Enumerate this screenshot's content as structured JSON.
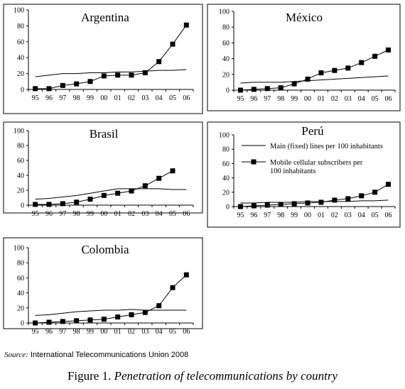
{
  "source": {
    "label": "Source:",
    "text": "International Telecommunications Union 2008"
  },
  "figure_caption": {
    "number": "Figure 1.",
    "text": "Penetration of telecommunications by country"
  },
  "chart_data": [
    {
      "type": "line",
      "title": "Argentina",
      "x": [
        "95",
        "96",
        "97",
        "98",
        "99",
        "00",
        "01",
        "02",
        "03",
        "04",
        "05",
        "06"
      ],
      "ylim": [
        0,
        100
      ],
      "yticks": [
        0,
        20,
        40,
        60,
        80,
        100
      ],
      "series": [
        {
          "values": [
            16,
            18,
            20,
            20,
            21,
            21,
            22,
            22,
            23,
            24,
            24,
            25
          ]
        },
        {
          "values": [
            1,
            1,
            5,
            7,
            10,
            17,
            18,
            18,
            21,
            35,
            57,
            81
          ]
        }
      ]
    },
    {
      "type": "line",
      "title": "México",
      "x": [
        "95",
        "96",
        "97",
        "98",
        "99",
        "00",
        "01",
        "02",
        "03",
        "04",
        "05",
        "06"
      ],
      "ylim": [
        0,
        100
      ],
      "yticks": [
        0,
        20,
        40,
        60,
        80,
        100
      ],
      "series": [
        {
          "values": [
            9,
            10,
            10,
            10,
            11,
            12,
            13,
            14,
            15,
            16,
            17,
            18
          ]
        },
        {
          "values": [
            0,
            1,
            2,
            3,
            8,
            14,
            22,
            25,
            28,
            35,
            43,
            51
          ]
        }
      ]
    },
    {
      "type": "line",
      "title": "Brasil",
      "x": [
        "95",
        "96",
        "97",
        "98",
        "99",
        "00",
        "01",
        "02",
        "03",
        "04",
        "05",
        "06"
      ],
      "ylim": [
        0,
        100
      ],
      "yticks": [
        0,
        20,
        40,
        60,
        80,
        100
      ],
      "series": [
        {
          "values": [
            8,
            9,
            11,
            13,
            16,
            19,
            22,
            22,
            22,
            22,
            21,
            21
          ]
        },
        {
          "values": [
            1,
            1,
            2,
            4,
            8,
            13,
            16,
            19,
            26,
            36,
            46,
            null
          ]
        }
      ]
    },
    {
      "type": "line",
      "title": "Perú",
      "x": [
        "95",
        "96",
        "97",
        "98",
        "99",
        "00",
        "01",
        "02",
        "03",
        "04",
        "05",
        "06"
      ],
      "ylim": [
        0,
        100
      ],
      "yticks": [
        0,
        20,
        40,
        60,
        80,
        100
      ],
      "legend": "top-right",
      "series": [
        {
          "name": "Main (fixed) lines per 100 inhabitants",
          "values": [
            5,
            5,
            6,
            6,
            6,
            7,
            7,
            7,
            7,
            8,
            8,
            9
          ]
        },
        {
          "name": "Mobile cellular subscribers per 100 inhabitants",
          "values": [
            0,
            1,
            2,
            3,
            4,
            5,
            6,
            9,
            11,
            15,
            20,
            31
          ]
        }
      ]
    },
    {
      "type": "line",
      "title": "Colombia",
      "x": [
        "95",
        "96",
        "97",
        "98",
        "99",
        "00",
        "01",
        "02",
        "03",
        "04",
        "05",
        "06"
      ],
      "ylim": [
        0,
        100
      ],
      "yticks": [
        0,
        20,
        40,
        60,
        80,
        100
      ],
      "series": [
        {
          "values": [
            10,
            11,
            13,
            15,
            16,
            17,
            17,
            18,
            17,
            17,
            17,
            17
          ]
        },
        {
          "values": [
            0,
            1,
            2,
            3,
            4,
            5,
            8,
            11,
            14,
            23,
            47,
            64
          ]
        }
      ]
    }
  ]
}
